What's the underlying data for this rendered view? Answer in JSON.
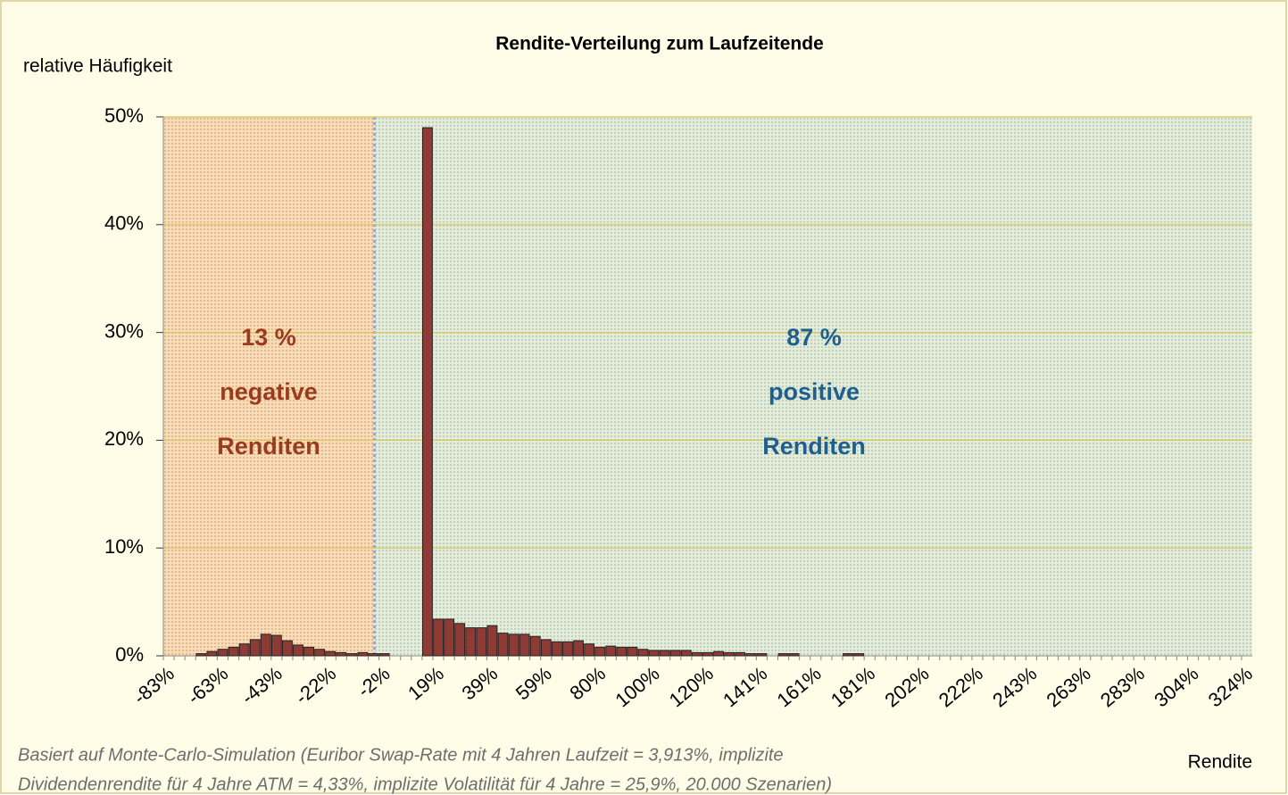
{
  "chart_data": {
    "type": "bar",
    "title": "Rendite-Verteilung zum Laufzeitende",
    "y_label": "relative Häufigkeit",
    "x_label": "Rendite",
    "footnote": [
      "Basiert auf Monte-Carlo-Simulation  (Euribor Swap-Rate mit 4 Jahren Laufzeit = 3,913%, implizite",
      "Dividendenrendite für 4 Jahre ATM = 4,33%, implizite Volatilität für 4 Jahre = 25,9%, 20.000 Szenarien)"
    ],
    "annotations_negative": [
      "13 %",
      "negative",
      "Renditen"
    ],
    "annotations_positive": [
      "87 %",
      "positive",
      "Renditen"
    ],
    "categories": [
      "-83%",
      null,
      null,
      null,
      null,
      "-63%",
      null,
      null,
      null,
      null,
      "-43%",
      null,
      null,
      null,
      null,
      "-22%",
      null,
      null,
      null,
      null,
      "-2%",
      null,
      null,
      null,
      null,
      "19%",
      null,
      null,
      null,
      null,
      "39%",
      null,
      null,
      null,
      null,
      "59%",
      null,
      null,
      null,
      null,
      "80%",
      null,
      null,
      null,
      null,
      "100%",
      null,
      null,
      null,
      null,
      "120%",
      null,
      null,
      null,
      null,
      "141%",
      null,
      null,
      null,
      null,
      "161%",
      null,
      null,
      null,
      null,
      "181%",
      null,
      null,
      null,
      null,
      "202%",
      null,
      null,
      null,
      null,
      "222%",
      null,
      null,
      null,
      null,
      "243%",
      null,
      null,
      null,
      null,
      "263%",
      null,
      null,
      null,
      null,
      "283%",
      null,
      null,
      null,
      null,
      "304%",
      null,
      null,
      null,
      null,
      "324%"
    ],
    "values": [
      0,
      0,
      0,
      0.2,
      0.4,
      0.6,
      0.8,
      1.1,
      1.5,
      2.0,
      1.9,
      1.4,
      1.0,
      0.8,
      0.6,
      0.4,
      0.3,
      0.2,
      0.3,
      0.2,
      0.2,
      0,
      0,
      0,
      49,
      3.4,
      3.4,
      3.0,
      2.6,
      2.6,
      2.8,
      2.1,
      2.0,
      2.0,
      1.8,
      1.5,
      1.3,
      1.3,
      1.4,
      1.1,
      0.8,
      0.9,
      0.8,
      0.8,
      0.6,
      0.5,
      0.5,
      0.5,
      0.5,
      0.3,
      0.3,
      0.4,
      0.3,
      0.3,
      0.2,
      0.2,
      0,
      0.2,
      0.2,
      0,
      0,
      0,
      0,
      0.2,
      0.2,
      0,
      0,
      0,
      0,
      0,
      0,
      0,
      0,
      0,
      0,
      0,
      0,
      0,
      0,
      0,
      0,
      0,
      0,
      0,
      0,
      0,
      0,
      0,
      0,
      0,
      0,
      0,
      0,
      0,
      0,
      0,
      0,
      0,
      0,
      0,
      0
    ],
    "color": "#8e3b36",
    "ylim": [
      0,
      50
    ],
    "yticks": [
      {
        "value": 0,
        "label": "0%"
      },
      {
        "value": 10,
        "label": "10%"
      },
      {
        "value": 20,
        "label": "20%"
      },
      {
        "value": 30,
        "label": "30%"
      },
      {
        "value": 40,
        "label": "40%"
      },
      {
        "value": 50,
        "label": "50%"
      }
    ],
    "grid": true
  }
}
